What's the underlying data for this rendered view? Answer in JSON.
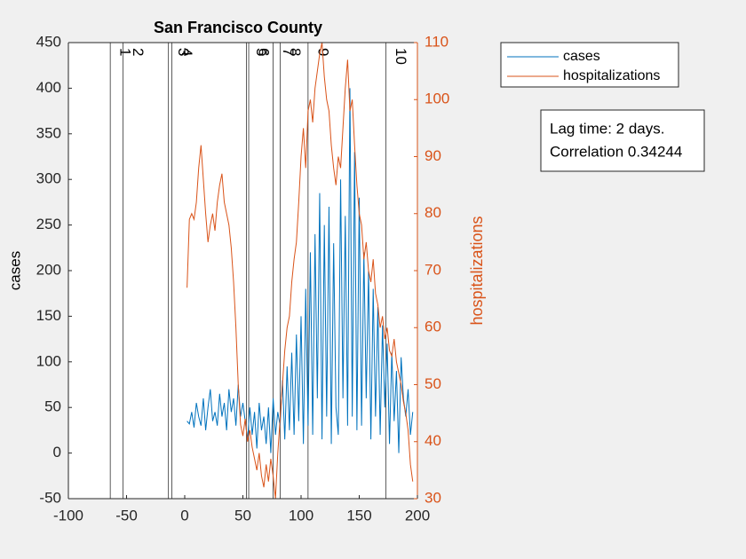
{
  "chart_data": {
    "type": "line",
    "title": "San Francisco County",
    "ylabel": "cases",
    "y2label": "hospitalizations",
    "x": [
      2,
      4,
      6,
      8,
      10,
      12,
      14,
      16,
      18,
      20,
      22,
      24,
      26,
      28,
      30,
      32,
      34,
      36,
      38,
      40,
      42,
      44,
      46,
      48,
      50,
      52,
      54,
      56,
      58,
      60,
      62,
      64,
      66,
      68,
      70,
      72,
      74,
      76,
      78,
      80,
      82,
      84,
      86,
      88,
      90,
      92,
      94,
      96,
      98,
      100,
      102,
      104,
      106,
      108,
      110,
      112,
      114,
      116,
      118,
      120,
      122,
      124,
      126,
      128,
      130,
      132,
      134,
      136,
      138,
      140,
      142,
      144,
      146,
      148,
      150,
      152,
      154,
      156,
      158,
      160,
      162,
      164,
      166,
      168,
      170,
      172,
      174,
      176,
      178,
      180,
      182,
      184,
      186,
      188,
      190,
      192,
      194,
      196
    ],
    "series": [
      {
        "name": "cases",
        "color": "#0072BD",
        "axis": "y",
        "values": [
          35,
          32,
          45,
          28,
          55,
          40,
          30,
          60,
          25,
          50,
          70,
          35,
          45,
          30,
          65,
          40,
          55,
          25,
          70,
          45,
          60,
          30,
          75,
          40,
          55,
          35,
          15,
          50,
          20,
          45,
          5,
          55,
          25,
          40,
          10,
          50,
          0,
          60,
          20,
          45,
          30,
          80,
          15,
          95,
          25,
          110,
          20,
          130,
          35,
          150,
          10,
          180,
          30,
          220,
          20,
          240,
          60,
          285,
          15,
          250,
          40,
          270,
          10,
          230,
          50,
          20,
          300,
          60,
          260,
          30,
          400,
          40,
          330,
          25,
          280,
          30,
          220,
          60,
          200,
          15,
          180,
          40,
          160,
          20,
          140,
          50,
          120,
          10,
          110,
          35,
          90,
          0,
          105,
          60,
          40,
          70,
          20,
          45
        ]
      },
      {
        "name": "hospitalizations",
        "color": "#D95319",
        "axis": "y2",
        "values": [
          67,
          79,
          80,
          79,
          82,
          88,
          92,
          86,
          80,
          75,
          78,
          80,
          77,
          82,
          85,
          87,
          82,
          80,
          78,
          74,
          68,
          60,
          50,
          43,
          41,
          44,
          40,
          42,
          39,
          37,
          35,
          38,
          34,
          32,
          36,
          33,
          37,
          34,
          30,
          38,
          44,
          50,
          56,
          60,
          62,
          68,
          72,
          75,
          82,
          90,
          95,
          88,
          98,
          100,
          96,
          102,
          105,
          108,
          110,
          104,
          100,
          98,
          92,
          88,
          85,
          90,
          88,
          95,
          102,
          107,
          98,
          100,
          92,
          85,
          80,
          78,
          72,
          75,
          70,
          68,
          72,
          66,
          64,
          60,
          62,
          58,
          60,
          56,
          55,
          58,
          54,
          52,
          50,
          47,
          45,
          42,
          36,
          33
        ]
      }
    ],
    "event_lines": [
      {
        "x": -64,
        "label": "1"
      },
      {
        "x": -53,
        "label": "2"
      },
      {
        "x": -14,
        "label": "3"
      },
      {
        "x": -11,
        "label": "4"
      },
      {
        "x": 53,
        "label": "5"
      },
      {
        "x": 55,
        "label": "6"
      },
      {
        "x": 76,
        "label": "7"
      },
      {
        "x": 82,
        "label": "8"
      },
      {
        "x": 106,
        "label": "9"
      },
      {
        "x": 173,
        "label": "10"
      }
    ],
    "annotation": [
      "Lag time: 2 days.",
      "Correlation 0.34244"
    ],
    "xlim": [
      -100,
      200
    ],
    "xticks": [
      -100,
      -50,
      0,
      50,
      100,
      150,
      200
    ],
    "ylim": [
      -50,
      450
    ],
    "yticks": [
      -50,
      0,
      50,
      100,
      150,
      200,
      250,
      300,
      350,
      400,
      450
    ],
    "y2lim": [
      30,
      110
    ],
    "y2ticks": [
      30,
      40,
      50,
      60,
      70,
      80,
      90,
      100,
      110
    ],
    "legend": "outside-top-right"
  }
}
